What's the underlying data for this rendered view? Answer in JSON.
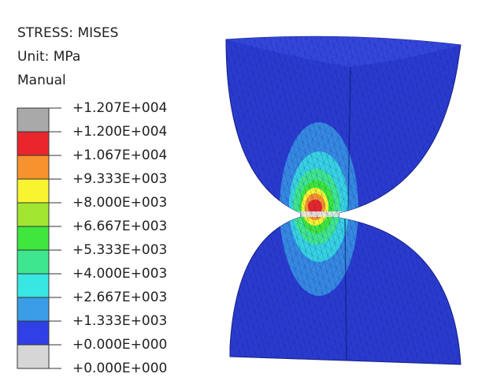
{
  "legend": {
    "title": "STRESS: MISES",
    "unit": "Unit: MPa",
    "mode": "Manual",
    "levels": [
      "+1.207E+004",
      "+1.200E+004",
      "+1.067E+004",
      "+9.333E+003",
      "+8.000E+003",
      "+6.667E+003",
      "+5.333E+003",
      "+4.000E+003",
      "+2.667E+003",
      "+1.333E+003",
      "+0.000E+000",
      "+0.000E+000"
    ],
    "band_colors": [
      "#a9a9a9",
      "#e8262c",
      "#f7922e",
      "#f8f530",
      "#a2e632",
      "#3ee63e",
      "#3fe690",
      "#38e6e2",
      "#3a9de6",
      "#3040e6",
      "#d6d6d6"
    ]
  }
}
